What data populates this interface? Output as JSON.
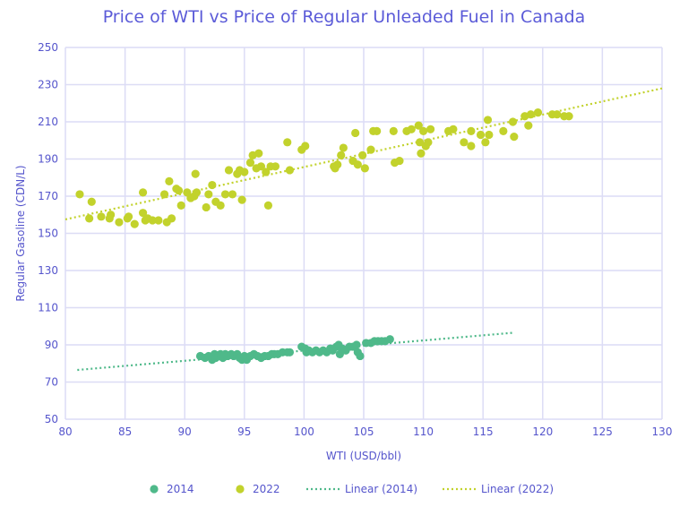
{
  "chart_data": {
    "type": "scatter",
    "title": "Price of WTI vs Price of Regular Unleaded Fuel in Canada",
    "xlabel": "WTI (USD/bbl)",
    "ylabel": "Regular Gasoline (CDN/L)",
    "xlim": [
      80,
      130
    ],
    "ylim": [
      50,
      250
    ],
    "xticks": [
      80,
      85,
      90,
      95,
      100,
      105,
      110,
      115,
      120,
      125,
      130
    ],
    "yticks": [
      50,
      70,
      90,
      110,
      130,
      150,
      170,
      190,
      210,
      230,
      250
    ],
    "grid": true,
    "legend": "bottom",
    "series": [
      {
        "name": "2014",
        "color": "#4fb98a",
        "points": [
          [
            91.3,
            84
          ],
          [
            91.7,
            83
          ],
          [
            92,
            84
          ],
          [
            92.3,
            82
          ],
          [
            92.5,
            85
          ],
          [
            92.6,
            83
          ],
          [
            92.8,
            84
          ],
          [
            93,
            85
          ],
          [
            93.2,
            83
          ],
          [
            93.4,
            85
          ],
          [
            93.6,
            84
          ],
          [
            93.9,
            85
          ],
          [
            94.1,
            84
          ],
          [
            94.4,
            85
          ],
          [
            94.6,
            83
          ],
          [
            94.8,
            82
          ],
          [
            95,
            84
          ],
          [
            95.2,
            82
          ],
          [
            95.5,
            84
          ],
          [
            95.8,
            85
          ],
          [
            96.1,
            84
          ],
          [
            96.4,
            83
          ],
          [
            96.7,
            84
          ],
          [
            97,
            84
          ],
          [
            97.3,
            85
          ],
          [
            97.5,
            85
          ],
          [
            97.8,
            85
          ],
          [
            98.2,
            86
          ],
          [
            98.6,
            86
          ],
          [
            98.8,
            86
          ],
          [
            99.8,
            89
          ],
          [
            100.1,
            88
          ],
          [
            100.2,
            86
          ],
          [
            100.4,
            87
          ],
          [
            100.7,
            86
          ],
          [
            101,
            87
          ],
          [
            101.3,
            86
          ],
          [
            101.6,
            87
          ],
          [
            101.9,
            86
          ],
          [
            102.2,
            88
          ],
          [
            102.4,
            87
          ],
          [
            102.7,
            89
          ],
          [
            102.9,
            90
          ],
          [
            103,
            85
          ],
          [
            103.2,
            88
          ],
          [
            103.5,
            87
          ],
          [
            103.8,
            89
          ],
          [
            104.1,
            89
          ],
          [
            104.4,
            90
          ],
          [
            104.5,
            86
          ],
          [
            104.7,
            84
          ],
          [
            105.2,
            91
          ],
          [
            105.6,
            91
          ],
          [
            105.9,
            92
          ],
          [
            106.2,
            92
          ],
          [
            106.5,
            92
          ],
          [
            106.8,
            92
          ],
          [
            107.2,
            93
          ]
        ]
      },
      {
        "name": "2022",
        "color": "#c2d22c",
        "points": [
          [
            81.2,
            171
          ],
          [
            82,
            158
          ],
          [
            82.2,
            167
          ],
          [
            83,
            159
          ],
          [
            83.7,
            158
          ],
          [
            83.8,
            160
          ],
          [
            84.5,
            156
          ],
          [
            85.2,
            158
          ],
          [
            85.3,
            159
          ],
          [
            85.8,
            155
          ],
          [
            86.5,
            172
          ],
          [
            86.5,
            161
          ],
          [
            86.7,
            157
          ],
          [
            86.9,
            158
          ],
          [
            87.3,
            157
          ],
          [
            87.8,
            157
          ],
          [
            88.3,
            171
          ],
          [
            88.5,
            156
          ],
          [
            88.7,
            178
          ],
          [
            88.9,
            158
          ],
          [
            89.3,
            174
          ],
          [
            89.5,
            173
          ],
          [
            89.7,
            165
          ],
          [
            90.2,
            172
          ],
          [
            90.5,
            169
          ],
          [
            90.8,
            170
          ],
          [
            90.9,
            182
          ],
          [
            91,
            172
          ],
          [
            91.8,
            164
          ],
          [
            92,
            171
          ],
          [
            92.3,
            176
          ],
          [
            92.6,
            167
          ],
          [
            93,
            165
          ],
          [
            93.4,
            171
          ],
          [
            93.7,
            184
          ],
          [
            94,
            171
          ],
          [
            94.4,
            182
          ],
          [
            94.6,
            184
          ],
          [
            94.8,
            168
          ],
          [
            95,
            183
          ],
          [
            95.5,
            188
          ],
          [
            95.7,
            192
          ],
          [
            96,
            185
          ],
          [
            96.2,
            193
          ],
          [
            96.4,
            186
          ],
          [
            96.8,
            183
          ],
          [
            97,
            165
          ],
          [
            97.2,
            186
          ],
          [
            97.6,
            186
          ],
          [
            98.6,
            199
          ],
          [
            98.8,
            184
          ],
          [
            99.8,
            195
          ],
          [
            100.1,
            197
          ],
          [
            102.5,
            186
          ],
          [
            102.6,
            185
          ],
          [
            102.8,
            187
          ],
          [
            103.1,
            192
          ],
          [
            103.3,
            196
          ],
          [
            104.1,
            189
          ],
          [
            104.3,
            204
          ],
          [
            104.5,
            187
          ],
          [
            104.9,
            192
          ],
          [
            105.1,
            185
          ],
          [
            105.6,
            195
          ],
          [
            105.8,
            205
          ],
          [
            106.1,
            205
          ],
          [
            107.5,
            205
          ],
          [
            107.6,
            188
          ],
          [
            108,
            189
          ],
          [
            108.6,
            205
          ],
          [
            109,
            206
          ],
          [
            109.6,
            208
          ],
          [
            109.7,
            199
          ],
          [
            109.8,
            193
          ],
          [
            110,
            205
          ],
          [
            110.2,
            197
          ],
          [
            110.4,
            199
          ],
          [
            110.6,
            206
          ],
          [
            112.1,
            205
          ],
          [
            112.5,
            206
          ],
          [
            113.4,
            199
          ],
          [
            114,
            205
          ],
          [
            114,
            197
          ],
          [
            114.8,
            203
          ],
          [
            115.2,
            199
          ],
          [
            115.4,
            211
          ],
          [
            115.5,
            203
          ],
          [
            116.7,
            205
          ],
          [
            117.5,
            210
          ],
          [
            117.6,
            202
          ],
          [
            118.5,
            213
          ],
          [
            118.8,
            208
          ],
          [
            119,
            214
          ],
          [
            119.6,
            215
          ],
          [
            120.8,
            214
          ],
          [
            121.2,
            214
          ],
          [
            121.8,
            213
          ],
          [
            122.2,
            213
          ]
        ]
      }
    ],
    "trendlines": [
      {
        "name": "Linear (2014)",
        "color": "#4fb98a",
        "from": [
          81,
          76.5
        ],
        "to": [
          117.5,
          96.5
        ]
      },
      {
        "name": "Linear (2022)",
        "color": "#c2d22c",
        "from": [
          80,
          157.5
        ],
        "to": [
          130,
          228
        ]
      }
    ]
  }
}
